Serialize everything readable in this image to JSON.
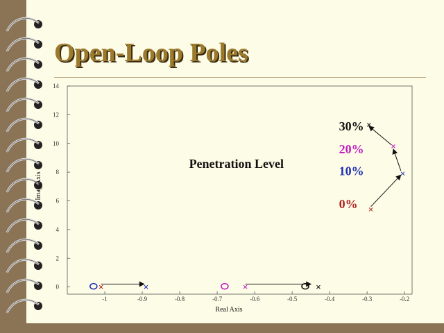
{
  "slide": {
    "title": "Open-Loop Poles",
    "background": "#fdfce6",
    "frame_color": "#8b7355",
    "title_color": "#9b7a2c"
  },
  "chart_data": {
    "type": "scatter",
    "title": "",
    "xlabel": "Real Axis",
    "ylabel": "Imag Axis",
    "xlim": [
      -1.1,
      -0.18
    ],
    "ylim": [
      -0.5,
      14
    ],
    "xticks": [
      -1,
      -0.9,
      -0.8,
      -0.7,
      -0.6,
      -0.5,
      -0.4,
      -0.3,
      -0.2
    ],
    "yticks": [
      0,
      2,
      4,
      6,
      8,
      10,
      12,
      14
    ],
    "grid": false,
    "series": [
      {
        "name": "0%",
        "color": "#b22222",
        "marker": "x",
        "points": [
          [
            -1.01,
            0
          ],
          [
            -0.29,
            5.4
          ]
        ]
      },
      {
        "name": "10%",
        "color": "#1f2fb5",
        "marker": "x",
        "points": [
          [
            -0.89,
            0
          ],
          [
            -0.205,
            7.9
          ]
        ]
      },
      {
        "name": "20%",
        "color": "#c21fc2",
        "marker": "x",
        "points": [
          [
            -0.625,
            0
          ],
          [
            -0.23,
            9.8
          ]
        ]
      },
      {
        "name": "30%",
        "color": "#111111",
        "marker": "x",
        "points": [
          [
            -0.43,
            0
          ],
          [
            -0.295,
            11.3
          ]
        ]
      }
    ],
    "zeros": [
      {
        "x": -1.03,
        "y": 0,
        "color": "#1f2fb5"
      },
      {
        "x": -0.68,
        "y": 0,
        "color": "#c21fc2"
      },
      {
        "x": -0.465,
        "y": 0,
        "color": "#111111"
      }
    ],
    "arrows": [
      {
        "from": [
          -1.01,
          0.2
        ],
        "to": [
          -0.895,
          0.2
        ]
      },
      {
        "from": [
          -0.625,
          0.2
        ],
        "to": [
          -0.45,
          0.2
        ]
      },
      {
        "from": [
          -0.29,
          5.6
        ],
        "to": [
          -0.21,
          7.8
        ]
      },
      {
        "from": [
          -0.21,
          8.1
        ],
        "to": [
          -0.23,
          9.6
        ]
      },
      {
        "from": [
          -0.235,
          9.9
        ],
        "to": [
          -0.295,
          11.2
        ]
      }
    ],
    "annotations": [
      {
        "text": "Penetration Level",
        "x": -0.775,
        "y": 8.3,
        "color": "#111111",
        "size": 18
      },
      {
        "text": "30%",
        "x": -0.375,
        "y": 10.9,
        "color": "#111111",
        "size": 18
      },
      {
        "text": "20%",
        "x": -0.375,
        "y": 9.3,
        "color": "#c21fc2",
        "size": 18
      },
      {
        "text": "10%",
        "x": -0.375,
        "y": 7.8,
        "color": "#1f2fb5",
        "size": 18
      },
      {
        "text": "0%",
        "x": -0.375,
        "y": 5.5,
        "color": "#b22222",
        "size": 18
      }
    ]
  }
}
